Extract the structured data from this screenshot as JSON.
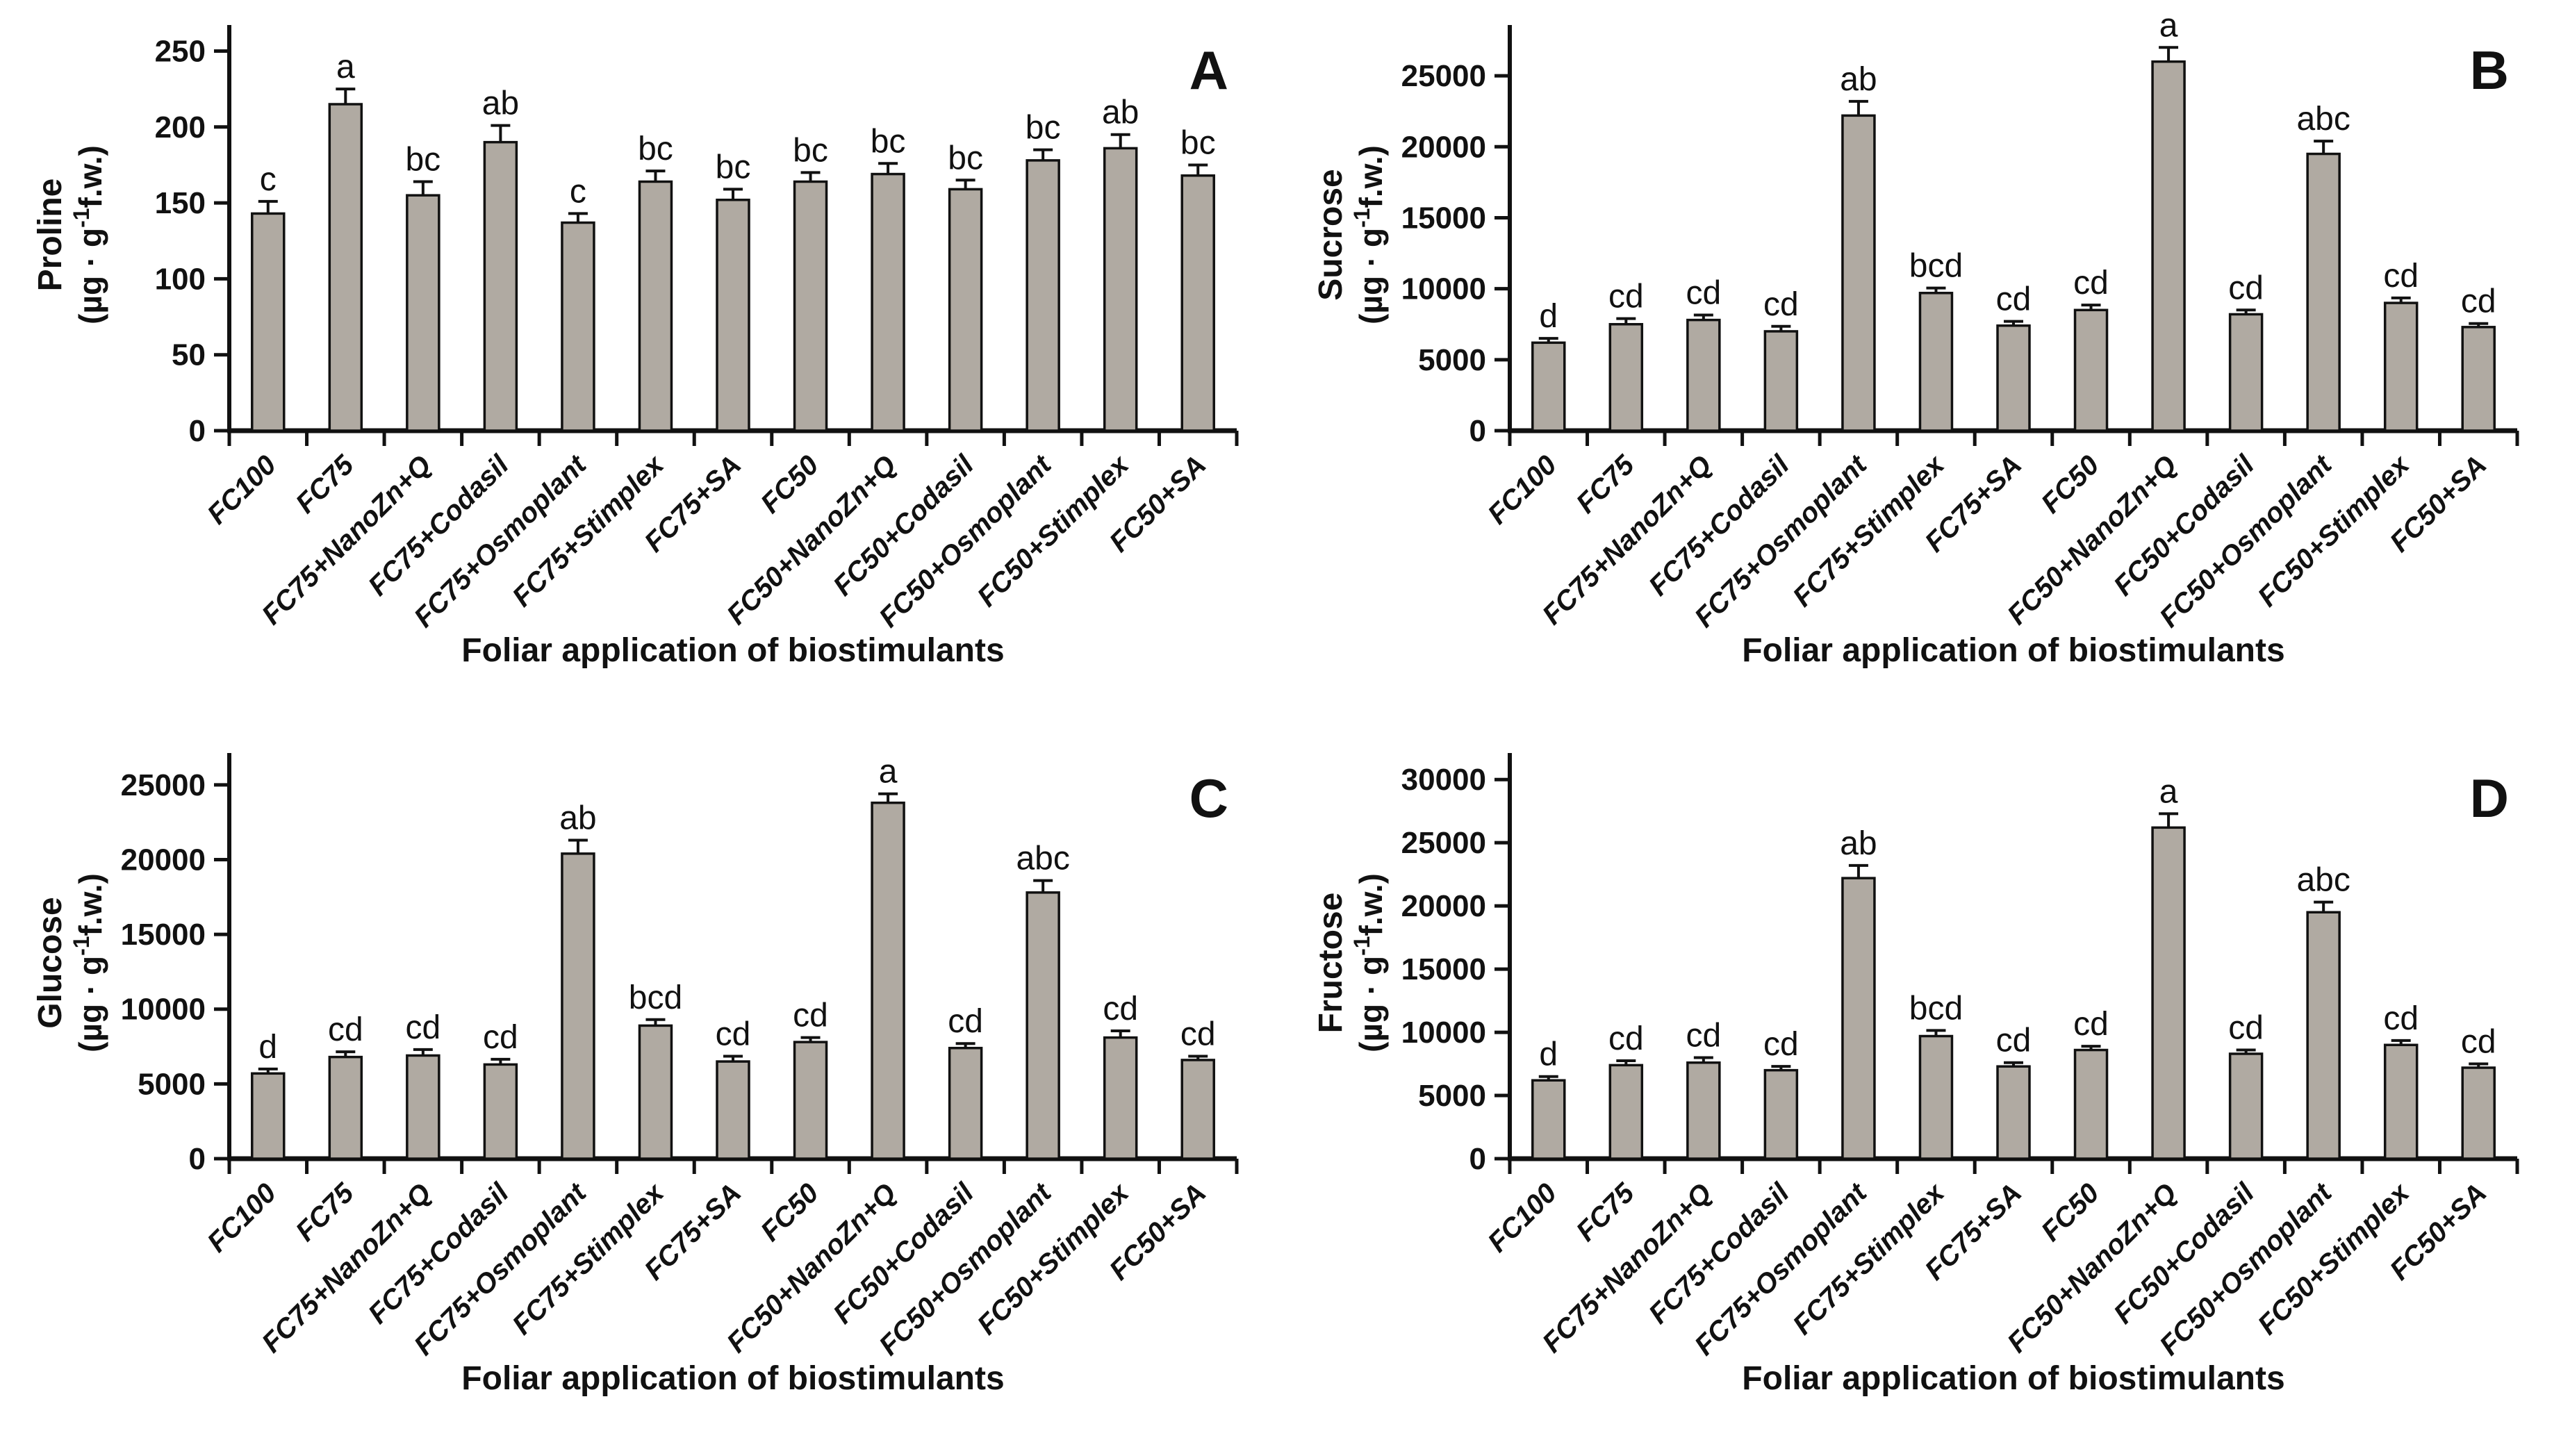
{
  "figure": {
    "background": "#ffffff",
    "bar_fill": "#b0aaa2",
    "bar_stroke": "#111111",
    "axis_color": "#111111",
    "x_axis_title": "Foliar application of biostimulants",
    "panel_letters": [
      "A",
      "B",
      "C",
      "D"
    ]
  },
  "chart_data": [
    {
      "type": "bar",
      "panel": "A",
      "title": "Proline",
      "ylabel": [
        "Proline",
        "(µg · g⁻¹f.w.)"
      ],
      "xlabel": "Foliar application of biostimulants",
      "categories": [
        "FC100",
        "FC75",
        "FC75+NanoZn+Q",
        "FC75+Codasil",
        "FC75+Osmoplant",
        "FC75+Stimplex",
        "FC75+SA",
        "FC50",
        "FC50+NanoZn+Q",
        "FC50+Codasil",
        "FC50+Osmoplant",
        "FC50+Stimplex",
        "FC50+SA"
      ],
      "values": [
        143,
        215,
        155,
        190,
        137,
        164,
        152,
        164,
        169,
        159,
        178,
        186,
        168
      ],
      "errors": [
        8,
        10,
        9,
        11,
        6,
        7,
        7,
        6,
        7,
        6,
        7,
        9,
        7
      ],
      "letters": [
        "c",
        "a",
        "bc",
        "ab",
        "c",
        "bc",
        "bc",
        "bc",
        "bc",
        "bc",
        "bc",
        "ab",
        "bc"
      ],
      "yticks": [
        0,
        50,
        100,
        150,
        200,
        250
      ],
      "ylim": [
        0,
        258
      ],
      "grid": false,
      "legend": "none"
    },
    {
      "type": "bar",
      "panel": "B",
      "title": "Sucrose",
      "ylabel": [
        "Sucrose",
        "(µg · g⁻¹f.w.)"
      ],
      "xlabel": "Foliar application of biostimulants",
      "categories": [
        "FC100",
        "FC75",
        "FC75+NanoZn+Q",
        "FC75+Codasil",
        "FC75+Osmoplant",
        "FC75+Stimplex",
        "FC75+SA",
        "FC50",
        "FC50+NanoZn+Q",
        "FC50+Codasil",
        "FC50+Osmoplant",
        "FC50+Stimplex",
        "FC50+SA"
      ],
      "values": [
        6200,
        7500,
        7800,
        7000,
        22200,
        9700,
        7400,
        8500,
        26000,
        8200,
        19500,
        9000,
        7300
      ],
      "errors": [
        300,
        400,
        350,
        350,
        1000,
        350,
        300,
        350,
        1000,
        300,
        900,
        350,
        250
      ],
      "letters": [
        "d",
        "cd",
        "cd",
        "cd",
        "ab",
        "bcd",
        "cd",
        "cd",
        "a",
        "cd",
        "abc",
        "cd",
        "cd"
      ],
      "yticks": [
        0,
        5000,
        10000,
        15000,
        20000,
        25000
      ],
      "ylim": [
        0,
        27600
      ],
      "grid": false,
      "legend": "none"
    },
    {
      "type": "bar",
      "panel": "C",
      "title": "Glucose",
      "ylabel": [
        "Glucose",
        "(µg · g⁻¹f.w.)"
      ],
      "xlabel": "Foliar application of biostimulants",
      "categories": [
        "FC100",
        "FC75",
        "FC75+NanoZn+Q",
        "FC75+Codasil",
        "FC75+Osmoplant",
        "FC75+Stimplex",
        "FC75+SA",
        "FC50",
        "FC50+NanoZn+Q",
        "FC50+Codasil",
        "FC50+Osmoplant",
        "FC50+Stimplex",
        "FC50+SA"
      ],
      "values": [
        5700,
        6800,
        6900,
        6300,
        20400,
        8900,
        6500,
        7800,
        23800,
        7400,
        17800,
        8100,
        6600
      ],
      "errors": [
        300,
        350,
        400,
        350,
        900,
        400,
        350,
        300,
        600,
        300,
        800,
        450,
        250
      ],
      "letters": [
        "d",
        "cd",
        "cd",
        "cd",
        "ab",
        "bcd",
        "cd",
        "cd",
        "a",
        "cd",
        "abc",
        "cd",
        "cd"
      ],
      "yticks": [
        0,
        5000,
        10000,
        15000,
        20000,
        25000
      ],
      "ylim": [
        0,
        26200
      ],
      "grid": false,
      "legend": "none"
    },
    {
      "type": "bar",
      "panel": "D",
      "title": "Fructose",
      "ylabel": [
        "Fructose",
        "(µg · g⁻¹f.w.)"
      ],
      "xlabel": "Foliar application of biostimulants",
      "categories": [
        "FC100",
        "FC75",
        "FC75+NanoZn+Q",
        "FC75+Codasil",
        "FC75+Osmoplant",
        "FC75+Stimplex",
        "FC75+SA",
        "FC50",
        "FC50+NanoZn+Q",
        "FC50+Codasil",
        "FC50+Osmoplant",
        "FC50+Stimplex",
        "FC50+SA"
      ],
      "values": [
        6200,
        7400,
        7600,
        7000,
        22200,
        9700,
        7300,
        8600,
        26200,
        8300,
        19500,
        9000,
        7200
      ],
      "errors": [
        300,
        350,
        400,
        300,
        1000,
        450,
        300,
        300,
        1100,
        300,
        800,
        350,
        300
      ],
      "letters": [
        "d",
        "cd",
        "cd",
        "cd",
        "ab",
        "bcd",
        "cd",
        "cd",
        "a",
        "cd",
        "abc",
        "cd",
        "cd"
      ],
      "yticks": [
        0,
        5000,
        10000,
        15000,
        20000,
        25000,
        30000
      ],
      "ylim": [
        0,
        31000
      ],
      "grid": false,
      "legend": "none"
    }
  ]
}
